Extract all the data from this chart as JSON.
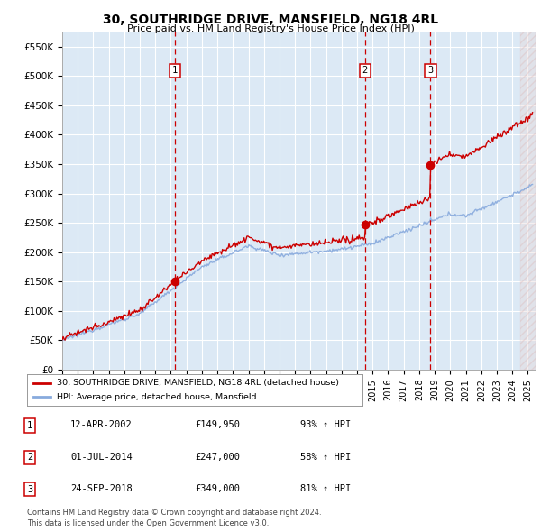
{
  "title": "30, SOUTHRIDGE DRIVE, MANSFIELD, NG18 4RL",
  "subtitle": "Price paid vs. HM Land Registry's House Price Index (HPI)",
  "yticks": [
    0,
    50000,
    100000,
    150000,
    200000,
    250000,
    300000,
    350000,
    400000,
    450000,
    500000,
    550000
  ],
  "ytick_labels": [
    "£0",
    "£50K",
    "£100K",
    "£150K",
    "£200K",
    "£250K",
    "£300K",
    "£350K",
    "£400K",
    "£450K",
    "£500K",
    "£550K"
  ],
  "xmin": 1995.0,
  "xmax": 2025.5,
  "ymin": 0,
  "ymax": 575000,
  "sale_color": "#cc0000",
  "hpi_color": "#88aadd",
  "background_color": "#ffffff",
  "plot_bg_color": "#dce9f5",
  "grid_color": "#ffffff",
  "vline_color": "#cc0000",
  "sales": [
    {
      "date": 2002.28,
      "price": 149950,
      "label": "1"
    },
    {
      "date": 2014.5,
      "price": 247000,
      "label": "2"
    },
    {
      "date": 2018.73,
      "price": 349000,
      "label": "3"
    }
  ],
  "table_rows": [
    {
      "num": "1",
      "date": "12-APR-2002",
      "price": "£149,950",
      "change": "93% ↑ HPI"
    },
    {
      "num": "2",
      "date": "01-JUL-2014",
      "price": "£247,000",
      "change": "58% ↑ HPI"
    },
    {
      "num": "3",
      "date": "24-SEP-2018",
      "price": "£349,000",
      "change": "81% ↑ HPI"
    }
  ],
  "legend_line1": "30, SOUTHRIDGE DRIVE, MANSFIELD, NG18 4RL (detached house)",
  "legend_line2": "HPI: Average price, detached house, Mansfield",
  "footer": "Contains HM Land Registry data © Crown copyright and database right 2024.\nThis data is licensed under the Open Government Licence v3.0.",
  "hatch_start": 2024.5
}
